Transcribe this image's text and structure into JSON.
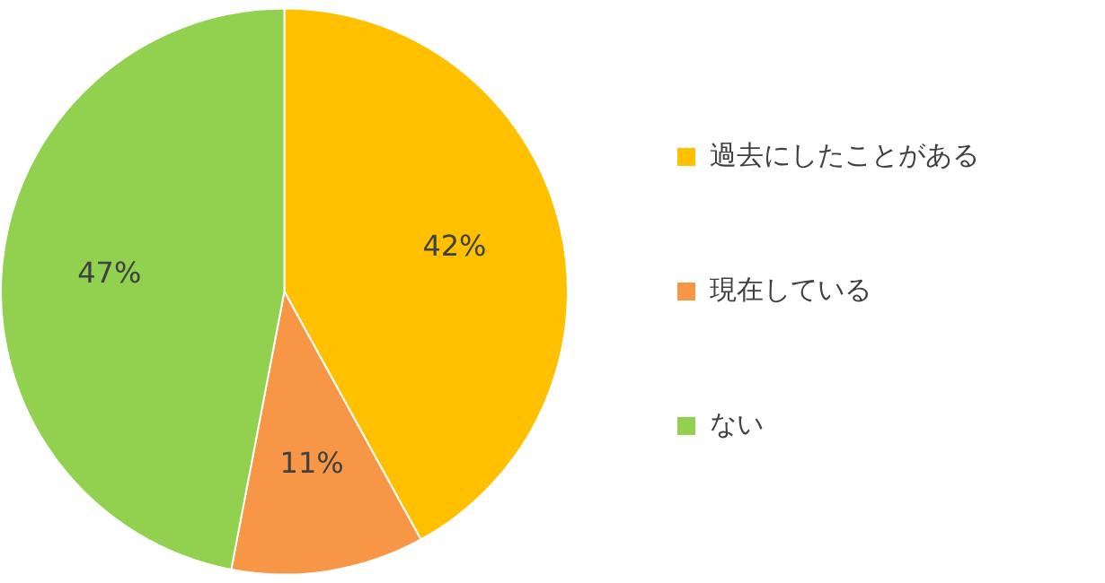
{
  "chart_data": {
    "type": "pie",
    "categories": [
      "過去にしたことがある",
      "現在している",
      "ない"
    ],
    "values": [
      42,
      11,
      47
    ],
    "colors": [
      "#ffc000",
      "#f79646",
      "#92d050"
    ],
    "value_labels": [
      "42%",
      "11%",
      "47%"
    ],
    "legend": "right"
  }
}
